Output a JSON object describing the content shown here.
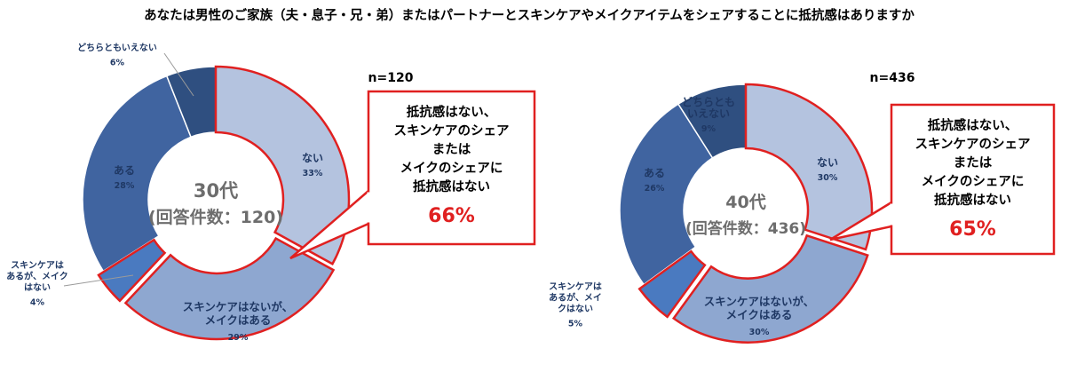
{
  "chart_data": [
    {
      "type": "donut",
      "title": "あなたは男性のご家族（夫・息子・兄・弟）またはパートナーとスキンケアやメイクアイテムをシェアすることに抵抗感はありますか",
      "n_label": "n=120",
      "center": {
        "line1": "30代",
        "line2": "(回答件数：120)"
      },
      "slices": [
        {
          "name": "ない",
          "label": [
            "ない"
          ],
          "value": 33,
          "pct_label": "33%",
          "color": "#b4c3df"
        },
        {
          "name": "スキンケアはないが、メイクはある",
          "label": [
            "スキンケアはないが、",
            "メイクはある"
          ],
          "value": 29,
          "pct_label": "29%",
          "color": "#8ea7d0"
        },
        {
          "name": "スキンケアはあるが、メイクはない",
          "label": [
            "スキンケアは",
            "あるが、メイク",
            "はない"
          ],
          "value": 4,
          "pct_label": "4%",
          "color": "#4a7ac0"
        },
        {
          "name": "ある",
          "label": [
            "ある"
          ],
          "value": 28,
          "pct_label": "28%",
          "color": "#4064a0"
        },
        {
          "name": "どちらともいえない",
          "label": [
            "どちらともいえない"
          ],
          "value": 6,
          "pct_label": "6%",
          "color": "#2f4f80"
        }
      ],
      "callout": {
        "lines": [
          "抵抗感はない、",
          "スキンケアのシェア",
          "または",
          "メイクのシェアに",
          "抵抗感はない"
        ],
        "value": "66%"
      }
    },
    {
      "type": "donut",
      "n_label": "n=436",
      "center": {
        "line1": "40代",
        "line2": "(回答件数：436)"
      },
      "slices": [
        {
          "name": "ない",
          "label": [
            "ない"
          ],
          "value": 30,
          "pct_label": "30%",
          "color": "#b4c3df"
        },
        {
          "name": "スキンケアはないが、メイクはある",
          "label": [
            "スキンケアはないが、",
            "メイクはある"
          ],
          "value": 30,
          "pct_label": "30%",
          "color": "#8ea7d0"
        },
        {
          "name": "スキンケアはあるが、メイクはない",
          "label": [
            "スキンケアは",
            "あるが、メイ",
            "クはない"
          ],
          "value": 5,
          "pct_label": "5%",
          "color": "#4a7ac0"
        },
        {
          "name": "ある",
          "label": [
            "ある"
          ],
          "value": 26,
          "pct_label": "26%",
          "color": "#4064a0"
        },
        {
          "name": "どちらともいえない",
          "label": [
            "どちらとも",
            "いえない"
          ],
          "value": 9,
          "pct_label": "9%",
          "color": "#2f4f80"
        }
      ],
      "callout": {
        "lines": [
          "抵抗感はない、",
          "スキンケアのシェア",
          "または",
          "メイクのシェアに",
          "抵抗感はない"
        ],
        "value": "65%"
      }
    }
  ]
}
